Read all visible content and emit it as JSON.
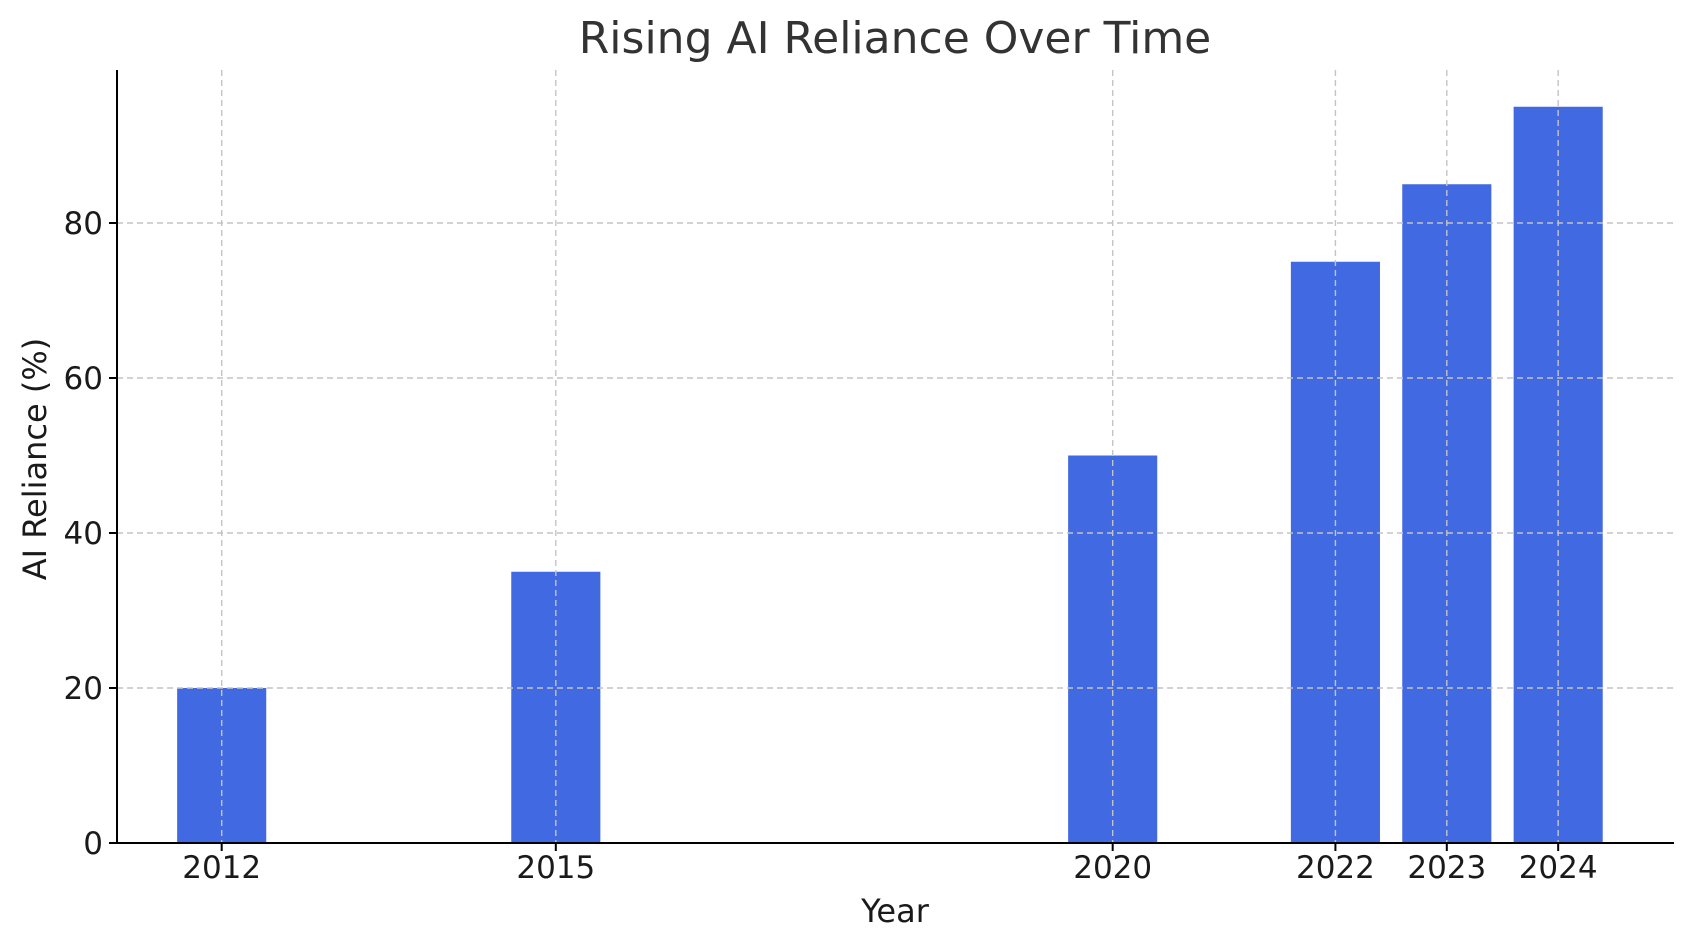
{
  "chart_data": {
    "type": "bar",
    "title": "Rising AI Reliance Over Time",
    "xlabel": "Year",
    "ylabel": "AI Reliance (%)",
    "x": [
      2012,
      2015,
      2020,
      2022,
      2023,
      2024
    ],
    "values": [
      20,
      35,
      50,
      75,
      85,
      95
    ],
    "xlim": [
      2011.06,
      2025.04
    ],
    "ylim": [
      0,
      100
    ],
    "yticks": [
      0,
      20,
      40,
      60,
      80
    ],
    "bar_color": "#4169e1",
    "grid": true
  }
}
